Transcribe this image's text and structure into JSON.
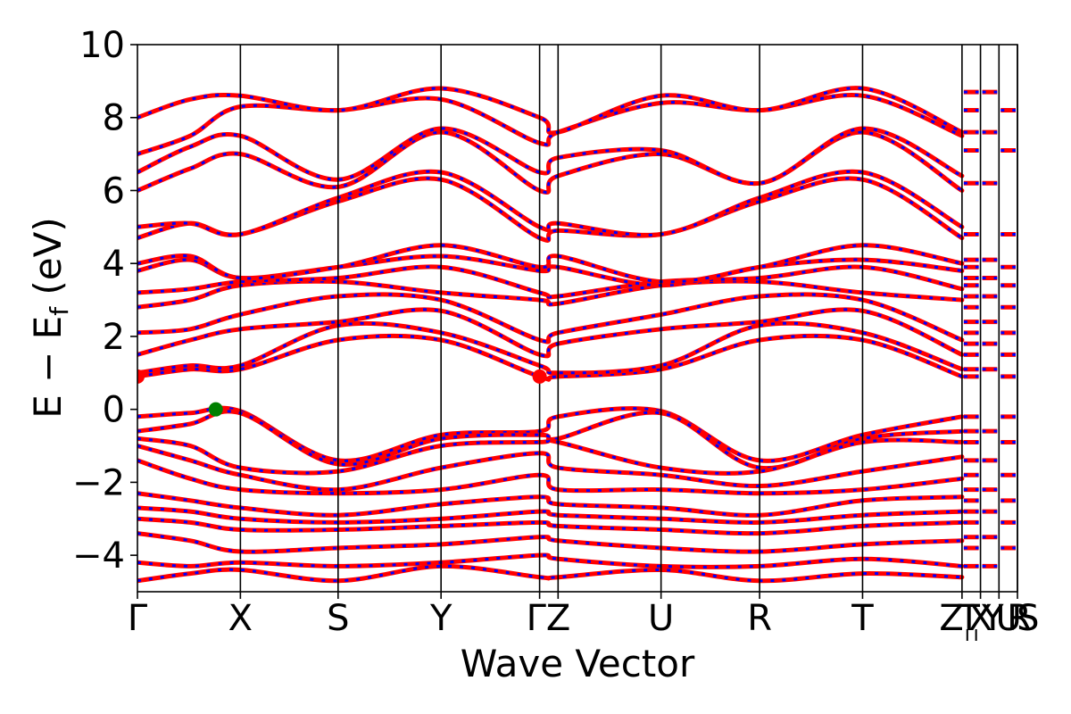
{
  "chart_data": {
    "type": "line",
    "xlabel": "Wave Vector",
    "ylabel": "E − E",
    "ylabel_subscript": "f",
    "ylabel_unit": " (eV)",
    "ylim": [
      -5,
      10
    ],
    "yticks": [
      -4,
      -2,
      0,
      2,
      4,
      6,
      8,
      10
    ],
    "ytick_labels": [
      "−4",
      "−2",
      "0",
      "2",
      "4",
      "6",
      "8",
      "10"
    ],
    "xlim": [
      0,
      1
    ],
    "kpath_ticks": [
      {
        "label": "Γ",
        "x": 0.0
      },
      {
        "label": "X",
        "x": 0.117
      },
      {
        "label": "S",
        "x": 0.228
      },
      {
        "label": "Y",
        "x": 0.345
      },
      {
        "label": "ΓZ",
        "x": 0.457
      },
      {
        "label": "",
        "x": 0.478
      },
      {
        "label": "U",
        "x": 0.595
      },
      {
        "label": "R",
        "x": 0.707
      },
      {
        "label": "T",
        "x": 0.824
      },
      {
        "label": "Z",
        "x": 0.937
      },
      {
        "label": "T",
        "x": 0.958
      },
      {
        "label": "X",
        "x": 0.958
      },
      {
        "label": "U",
        "x": 0.979
      },
      {
        "label": "R",
        "x": 1.0
      },
      {
        "label": "Y",
        "x": 0.958
      },
      {
        "label": "|",
        "x": 0.937
      },
      {
        "label": "S",
        "x": 1.0
      }
    ],
    "segment_boundaries": [
      0.117,
      0.228,
      0.345,
      0.457,
      0.478,
      0.595,
      0.707,
      0.824,
      0.937,
      0.958,
      0.979,
      1.0
    ],
    "colors": {
      "band": "#ff0000",
      "band_overlay": "#0000ff",
      "vbm": "#008000",
      "cbm": "#ff0000"
    },
    "markers": [
      {
        "name": "vbm",
        "x": 0.089,
        "y": 0.0
      },
      {
        "name": "cbm",
        "x": 0.0,
        "y": 0.9
      },
      {
        "name": "cbm",
        "x": 0.457,
        "y": 0.9
      }
    ],
    "bands": [
      {
        "x": [
          0,
          0.06,
          0.117,
          0.228,
          0.345,
          0.457,
          0.478,
          0.595,
          0.707,
          0.824,
          0.937
        ],
        "y": [
          -0.2,
          -0.1,
          -0.05,
          -1.4,
          -0.7,
          -0.6,
          -0.2,
          -0.05,
          -1.4,
          -0.7,
          -0.2
        ]
      },
      {
        "x": [
          0,
          0.06,
          0.117,
          0.228,
          0.345,
          0.457,
          0.478,
          0.595,
          0.707,
          0.824,
          0.937
        ],
        "y": [
          -0.6,
          -0.4,
          -0.1,
          -1.5,
          -0.8,
          -0.7,
          -0.8,
          -0.1,
          -1.6,
          -0.8,
          -0.6
        ]
      },
      {
        "x": [
          0,
          0.06,
          0.117,
          0.228,
          0.345,
          0.457,
          0.478,
          0.595,
          0.707,
          0.824,
          0.937
        ],
        "y": [
          -0.8,
          -1.0,
          -1.6,
          -1.7,
          -1.0,
          -0.9,
          -0.9,
          -1.6,
          -1.7,
          -0.9,
          -0.9
        ]
      },
      {
        "x": [
          0,
          0.06,
          0.117,
          0.228,
          0.345,
          0.457,
          0.478,
          0.595,
          0.707,
          0.824,
          0.937
        ],
        "y": [
          -1.0,
          -1.4,
          -1.8,
          -2.2,
          -1.6,
          -1.2,
          -1.6,
          -1.8,
          -2.1,
          -1.7,
          -1.3
        ]
      },
      {
        "x": [
          0,
          0.06,
          0.117,
          0.228,
          0.345,
          0.457,
          0.478,
          0.595,
          0.707,
          0.824,
          0.937
        ],
        "y": [
          -1.4,
          -1.9,
          -2.2,
          -2.3,
          -2.2,
          -1.8,
          -2.2,
          -2.2,
          -2.3,
          -2.2,
          -1.9
        ]
      },
      {
        "x": [
          0,
          0.06,
          0.117,
          0.228,
          0.345,
          0.457,
          0.478,
          0.595,
          0.707,
          0.824,
          0.937
        ],
        "y": [
          -2.3,
          -2.5,
          -2.7,
          -2.9,
          -2.6,
          -2.4,
          -2.6,
          -2.7,
          -2.9,
          -2.5,
          -2.4
        ]
      },
      {
        "x": [
          0,
          0.06,
          0.117,
          0.228,
          0.345,
          0.457,
          0.478,
          0.595,
          0.707,
          0.824,
          0.937
        ],
        "y": [
          -2.7,
          -2.8,
          -3.0,
          -3.1,
          -3.0,
          -2.8,
          -2.9,
          -3.0,
          -3.1,
          -2.9,
          -2.8
        ]
      },
      {
        "x": [
          0,
          0.06,
          0.117,
          0.228,
          0.345,
          0.457,
          0.478,
          0.595,
          0.707,
          0.824,
          0.937
        ],
        "y": [
          -3.0,
          -3.1,
          -3.3,
          -3.3,
          -3.2,
          -3.1,
          -3.2,
          -3.3,
          -3.4,
          -3.2,
          -3.1
        ]
      },
      {
        "x": [
          0,
          0.06,
          0.117,
          0.228,
          0.345,
          0.457,
          0.478,
          0.595,
          0.707,
          0.824,
          0.937
        ],
        "y": [
          -3.4,
          -3.6,
          -3.9,
          -3.8,
          -3.7,
          -3.5,
          -3.6,
          -3.8,
          -3.9,
          -3.7,
          -3.6
        ]
      },
      {
        "x": [
          0,
          0.06,
          0.117,
          0.228,
          0.345,
          0.457,
          0.478,
          0.595,
          0.707,
          0.824,
          0.937
        ],
        "y": [
          -4.2,
          -4.3,
          -4.2,
          -4.3,
          -4.2,
          -4.0,
          -4.1,
          -4.3,
          -4.3,
          -4.1,
          -4.3
        ]
      },
      {
        "x": [
          0,
          0.06,
          0.117,
          0.228,
          0.345,
          0.457,
          0.478,
          0.595,
          0.707,
          0.824,
          0.937
        ],
        "y": [
          -4.7,
          -4.5,
          -4.4,
          -4.7,
          -4.3,
          -4.6,
          -4.6,
          -4.4,
          -4.7,
          -4.5,
          -4.6
        ]
      },
      {
        "x": [
          0,
          0.06,
          0.117,
          0.228,
          0.345,
          0.457,
          0.478,
          0.595,
          0.707,
          0.824,
          0.937
        ],
        "y": [
          0.9,
          1.1,
          1.1,
          1.9,
          1.9,
          0.9,
          0.9,
          1.1,
          1.9,
          1.9,
          0.9
        ]
      },
      {
        "x": [
          0,
          0.06,
          0.117,
          0.228,
          0.345,
          0.457,
          0.478,
          0.595,
          0.707,
          0.824,
          0.937
        ],
        "y": [
          1.0,
          1.2,
          1.2,
          2.3,
          2.1,
          1.2,
          1.0,
          1.2,
          2.3,
          2.1,
          1.1
        ]
      },
      {
        "x": [
          0,
          0.06,
          0.117,
          0.228,
          0.345,
          0.457,
          0.478,
          0.595,
          0.707,
          0.824,
          0.937
        ],
        "y": [
          1.5,
          1.9,
          2.2,
          2.4,
          2.7,
          1.5,
          1.8,
          2.2,
          2.4,
          2.7,
          1.5
        ]
      },
      {
        "x": [
          0,
          0.06,
          0.117,
          0.228,
          0.345,
          0.457,
          0.478,
          0.595,
          0.707,
          0.824,
          0.937
        ],
        "y": [
          2.1,
          2.2,
          2.6,
          3.1,
          3.0,
          1.9,
          2.1,
          2.6,
          3.1,
          3.0,
          1.9
        ]
      },
      {
        "x": [
          0,
          0.06,
          0.117,
          0.228,
          0.345,
          0.457,
          0.478,
          0.595,
          0.707,
          0.824,
          0.937
        ],
        "y": [
          2.8,
          3.0,
          3.4,
          3.5,
          3.2,
          3.0,
          2.9,
          3.4,
          3.5,
          3.2,
          3.0
        ]
      },
      {
        "x": [
          0,
          0.06,
          0.117,
          0.228,
          0.345,
          0.457,
          0.478,
          0.595,
          0.707,
          0.824,
          0.937
        ],
        "y": [
          3.2,
          3.3,
          3.5,
          3.6,
          3.9,
          3.2,
          3.1,
          3.5,
          3.6,
          3.9,
          3.3
        ]
      },
      {
        "x": [
          0,
          0.06,
          0.117,
          0.228,
          0.345,
          0.457,
          0.478,
          0.595,
          0.707,
          0.824,
          0.937
        ],
        "y": [
          3.8,
          4.1,
          3.6,
          3.9,
          4.2,
          3.8,
          3.9,
          3.4,
          3.9,
          4.1,
          3.8
        ]
      },
      {
        "x": [
          0,
          0.06,
          0.117,
          0.228,
          0.345,
          0.457,
          0.478,
          0.595,
          0.707,
          0.824,
          0.937
        ],
        "y": [
          4.0,
          4.2,
          3.6,
          3.9,
          4.5,
          3.9,
          4.2,
          3.5,
          3.9,
          4.5,
          4.0
        ]
      },
      {
        "x": [
          0,
          0.06,
          0.117,
          0.228,
          0.345,
          0.457,
          0.478,
          0.595,
          0.707,
          0.824,
          0.937
        ],
        "y": [
          4.7,
          5.1,
          4.8,
          5.7,
          6.3,
          4.7,
          4.9,
          4.8,
          5.7,
          6.3,
          4.7
        ]
      },
      {
        "x": [
          0,
          0.06,
          0.117,
          0.228,
          0.345,
          0.457,
          0.478,
          0.595,
          0.707,
          0.824,
          0.937
        ],
        "y": [
          5.0,
          5.1,
          4.8,
          5.8,
          6.5,
          5.0,
          5.1,
          4.8,
          5.8,
          6.5,
          5.0
        ]
      },
      {
        "x": [
          0,
          0.06,
          0.117,
          0.228,
          0.345,
          0.457,
          0.478,
          0.595,
          0.707,
          0.824,
          0.937
        ],
        "y": [
          6.0,
          6.6,
          7.0,
          6.1,
          7.6,
          6.0,
          6.4,
          7.0,
          6.2,
          7.6,
          6.0
        ]
      },
      {
        "x": [
          0,
          0.06,
          0.117,
          0.228,
          0.345,
          0.457,
          0.478,
          0.595,
          0.707,
          0.824,
          0.937
        ],
        "y": [
          6.5,
          7.2,
          7.5,
          6.3,
          7.7,
          6.5,
          6.9,
          7.1,
          6.2,
          7.7,
          6.4
        ]
      },
      {
        "x": [
          0,
          0.06,
          0.117,
          0.228,
          0.345,
          0.457,
          0.478,
          0.595,
          0.707,
          0.824,
          0.937
        ],
        "y": [
          7.0,
          7.5,
          8.3,
          8.2,
          8.5,
          7.3,
          7.6,
          8.4,
          8.2,
          8.6,
          7.5
        ]
      },
      {
        "x": [
          0,
          0.06,
          0.117,
          0.228,
          0.345,
          0.457,
          0.478,
          0.595,
          0.707,
          0.824,
          0.937
        ],
        "y": [
          8.0,
          8.5,
          8.6,
          8.2,
          8.8,
          8.0,
          7.6,
          8.6,
          8.2,
          8.8,
          7.6
        ]
      }
    ],
    "flat_bands": [
      -0.2,
      -0.6,
      -0.9,
      -1.4,
      -1.8,
      -2.2,
      -2.5,
      -2.8,
      -3.1,
      -3.5,
      -3.8,
      -4.3,
      0.9,
      1.1,
      1.5,
      1.8,
      2.1,
      2.4,
      2.8,
      3.1,
      3.4,
      3.6,
      3.9,
      4.1,
      4.8,
      6.2,
      7.1,
      7.6,
      8.2,
      8.7
    ]
  }
}
